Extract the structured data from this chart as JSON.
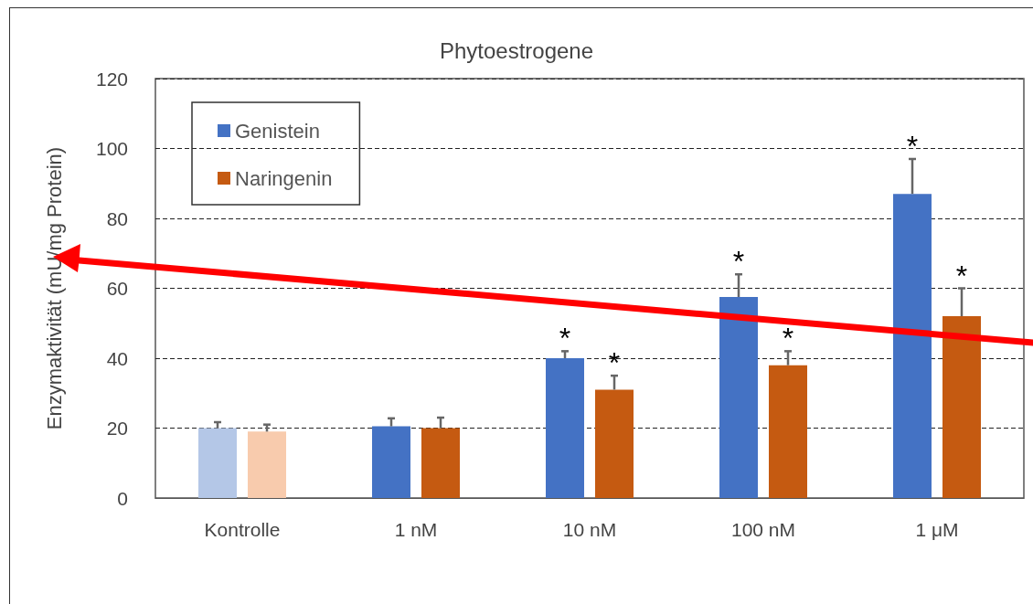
{
  "chart_data": {
    "type": "bar",
    "title": "Phytoestrogene",
    "ylabel": "Enzymaktivität (mU/mg Protein)",
    "categories": [
      "Kontrolle",
      "1 nM",
      "10 nM",
      "100 nM",
      "1 μM"
    ],
    "series": [
      {
        "name": "Genistein",
        "color": "#4472c4",
        "colors": [
          "#b4c7e7",
          "#4472c4",
          "#4472c4",
          "#4472c4",
          "#4472c4"
        ],
        "values": [
          20,
          20.5,
          40,
          57.5,
          87
        ],
        "errors": [
          1.7,
          2.3,
          2,
          6.5,
          10
        ],
        "value_labels": [
          null,
          null,
          "*",
          "*",
          "*"
        ]
      },
      {
        "name": "Naringenin",
        "color": "#c55a11",
        "colors": [
          "#f8cbad",
          "#c55a11",
          "#c55a11",
          "#c55a11",
          "#c55a11"
        ],
        "values": [
          19,
          20,
          31,
          38,
          52
        ],
        "errors": [
          2,
          3,
          4,
          4,
          8
        ],
        "value_labels": [
          null,
          null,
          "*",
          "*",
          "*"
        ]
      }
    ],
    "ylim": [
      0,
      120
    ],
    "yticks": [
      0,
      20,
      40,
      60,
      80,
      100,
      120
    ],
    "grid": "y",
    "legend": "top left"
  }
}
